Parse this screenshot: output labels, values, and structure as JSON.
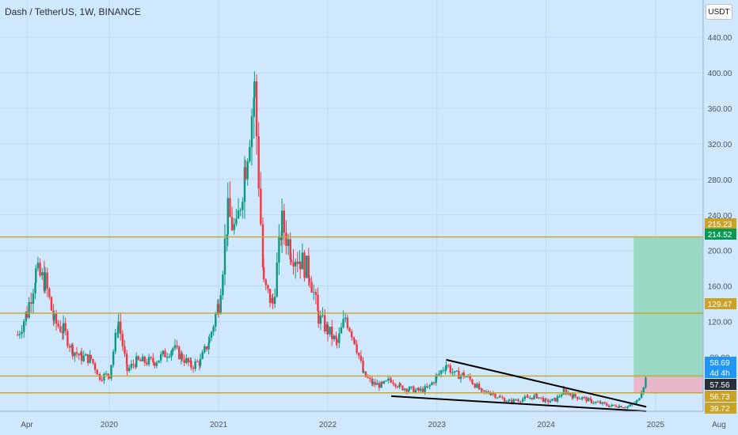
{
  "header": {
    "title": "Dash / TetherUS, 1W, BINANCE",
    "currency_button": "USDT"
  },
  "colors": {
    "background": "#cfe8fc",
    "grid": "#bcd8f2",
    "up": "#089981",
    "down": "#f23645",
    "level_line": "#c9a227",
    "target_zone": "#8fd6b8",
    "stop_zone": "#eab1c4",
    "trendline": "#000000"
  },
  "chart_data": {
    "type": "candlestick",
    "title": "Dash / TetherUS, 1W, BINANCE",
    "xlabel": "",
    "ylabel": "",
    "x_ticks": [
      "Apr",
      "2020",
      "2021",
      "2022",
      "2023",
      "2024",
      "2025",
      "Aug"
    ],
    "x_tick_dates": [
      "2019-04-01",
      "2020-01-01",
      "2021-01-01",
      "2022-01-01",
      "2023-01-01",
      "2024-01-01",
      "2025-01-01",
      "2025-08-01"
    ],
    "y_ticks": [
      80,
      120,
      160,
      200,
      240,
      280,
      320,
      360,
      400,
      440
    ],
    "ylim": [
      19,
      482
    ],
    "grid": true,
    "series": [
      {
        "kind": "ohlc_close_path",
        "points": [
          [
            "2019-03-01",
            105
          ],
          [
            "2019-04-01",
            130
          ],
          [
            "2019-05-01",
            175
          ],
          [
            "2019-06-01",
            165
          ],
          [
            "2019-07-01",
            120
          ],
          [
            "2019-08-01",
            110
          ],
          [
            "2019-09-01",
            88
          ],
          [
            "2019-10-01",
            80
          ],
          [
            "2019-11-01",
            78
          ],
          [
            "2019-12-01",
            58
          ],
          [
            "2020-01-01",
            60
          ],
          [
            "2020-02-01",
            120
          ],
          [
            "2020-03-01",
            65
          ],
          [
            "2020-04-01",
            75
          ],
          [
            "2020-06-01",
            75
          ],
          [
            "2020-08-01",
            90
          ],
          [
            "2020-09-01",
            80
          ],
          [
            "2020-10-01",
            70
          ],
          [
            "2020-11-01",
            75
          ],
          [
            "2020-12-01",
            100
          ],
          [
            "2021-01-01",
            140
          ],
          [
            "2021-02-01",
            240
          ],
          [
            "2021-03-01",
            220
          ],
          [
            "2021-04-01",
            300
          ],
          [
            "2021-05-01",
            380
          ],
          [
            "2021-06-01",
            160
          ],
          [
            "2021-07-01",
            140
          ],
          [
            "2021-08-01",
            230
          ],
          [
            "2021-09-01",
            200
          ],
          [
            "2021-10-01",
            190
          ],
          [
            "2021-11-01",
            175
          ],
          [
            "2021-12-01",
            125
          ],
          [
            "2022-01-01",
            110
          ],
          [
            "2022-02-01",
            95
          ],
          [
            "2022-03-01",
            125
          ],
          [
            "2022-04-01",
            100
          ],
          [
            "2022-05-01",
            60
          ],
          [
            "2022-06-01",
            50
          ],
          [
            "2022-07-01",
            48
          ],
          [
            "2022-08-01",
            55
          ],
          [
            "2022-09-01",
            46
          ],
          [
            "2022-10-01",
            44
          ],
          [
            "2022-11-01",
            42
          ],
          [
            "2022-12-01",
            45
          ],
          [
            "2023-01-01",
            58
          ],
          [
            "2023-02-01",
            72
          ],
          [
            "2023-03-01",
            60
          ],
          [
            "2023-04-01",
            60
          ],
          [
            "2023-05-01",
            52
          ],
          [
            "2023-06-01",
            40
          ],
          [
            "2023-07-01",
            40
          ],
          [
            "2023-08-01",
            34
          ],
          [
            "2023-09-01",
            30
          ],
          [
            "2023-10-01",
            32
          ],
          [
            "2023-11-01",
            34
          ],
          [
            "2023-12-01",
            36
          ],
          [
            "2024-01-01",
            30
          ],
          [
            "2024-02-01",
            32
          ],
          [
            "2024-03-01",
            42
          ],
          [
            "2024-04-01",
            36
          ],
          [
            "2024-05-01",
            34
          ],
          [
            "2024-06-01",
            30
          ],
          [
            "2024-07-01",
            28
          ],
          [
            "2024-08-01",
            25
          ],
          [
            "2024-09-01",
            25
          ],
          [
            "2024-10-01",
            24
          ],
          [
            "2024-11-01",
            30
          ],
          [
            "2024-12-01",
            57
          ]
        ]
      }
    ],
    "horizontal_levels": [
      215.23,
      129.47,
      58.69,
      39.72
    ],
    "trendlines": [
      {
        "from": [
          "2023-02-01",
          77
        ],
        "to": [
          "2024-12-01",
          24
        ]
      },
      {
        "from": [
          "2022-08-01",
          36
        ],
        "to": [
          "2024-12-01",
          19
        ]
      }
    ],
    "position_tool": {
      "entry": 57.56,
      "target": 214.52,
      "stop": 39.72,
      "start_date": "2024-10-20",
      "end_date": "2025-12-31"
    },
    "price_labels": [
      {
        "text": "215.23",
        "kind": "level"
      },
      {
        "text": "214.52",
        "kind": "target"
      },
      {
        "text": "129.47",
        "kind": "level"
      },
      {
        "text": "58.69",
        "kind": "last_price"
      },
      {
        "text": "4d 4h",
        "kind": "countdown"
      },
      {
        "text": "57.56",
        "kind": "entry"
      },
      {
        "text": "56.73",
        "kind": "level"
      },
      {
        "text": "39.72",
        "kind": "level"
      }
    ]
  }
}
